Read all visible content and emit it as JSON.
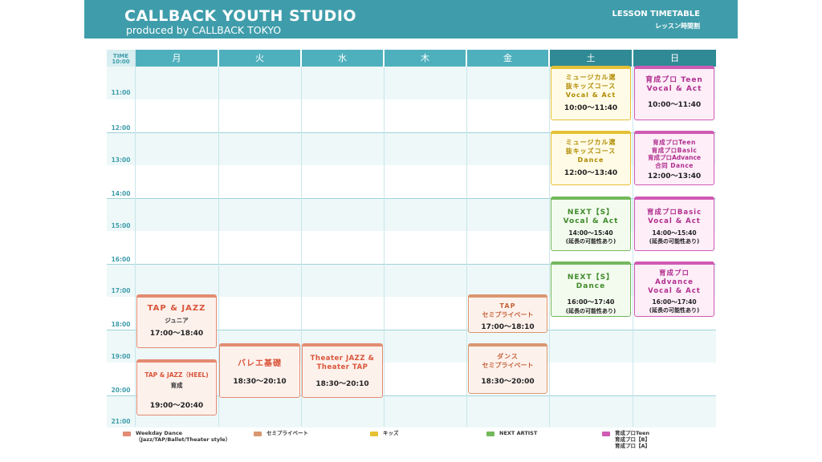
{
  "header": {
    "title": "CALLBACK YOUTH STUDIO",
    "subtitle": "produced by CALLBACK TOKYO",
    "right_title": "LESSON TIMETABLE",
    "right_sub": "レッスン時間割"
  },
  "time_header": {
    "label": "TIME",
    "start": "10:00"
  },
  "times": [
    "11:00",
    "12:00",
    "13:00",
    "14:00",
    "15:00",
    "16:00",
    "17:00",
    "18:00",
    "19:00",
    "20:00",
    "21:00"
  ],
  "days": [
    "月",
    "火",
    "水",
    "木",
    "金",
    "土",
    "日"
  ],
  "colors": {
    "header": "#3f9dab",
    "day_header": "#4fb0bd",
    "weekend_header": "#2f8a95"
  },
  "lessons": {
    "mon_tapjazz": {
      "title": "TAP & JAZZ",
      "sub": "ジュニア",
      "time": "17:00〜18:40"
    },
    "mon_heel": {
      "title": "TAP & JAZZ（HEEL)",
      "sub": "育成",
      "time": "19:00〜20:40"
    },
    "tue_ballet": {
      "title": "バレエ基礎",
      "time": "18:30〜20:10"
    },
    "wed_theater_1": {
      "title": "Theater JAZZ &",
      "title2": "Theater TAP",
      "time": "18:30〜20:10"
    },
    "fri_tap": {
      "title": "TAP",
      "title2": "セミプライベート",
      "time": "17:00〜18:10"
    },
    "fri_dance": {
      "title": "ダンス",
      "title2": "セミプライベート",
      "time": "18:30〜20:00"
    },
    "sat_kids_vocal": {
      "l1": "ミュージカル選",
      "l2": "抜キッズコース",
      "l3": "Vocal & Act",
      "time": "10:00〜11:40"
    },
    "sat_kids_dance": {
      "l1": "ミュージカル選",
      "l2": "抜キッズコース",
      "l3": "Dance",
      "time": "12:00〜13:40"
    },
    "sat_next_vocal": {
      "l1": "NEXT【S】",
      "l2": "Vocal & Act",
      "time": "14:00〜15:40",
      "note": "(延長の可能性あり)"
    },
    "sat_next_dance": {
      "l1": "NEXT【S】",
      "l2": "Dance",
      "time": "16:00〜17:40",
      "note": "(延長の可能性あり)"
    },
    "sun_teen": {
      "l1": "育成プロ Teen",
      "l2": "Vocal & Act",
      "time": "10:00〜11:40"
    },
    "sun_joint_dance": {
      "l1": "育成プロTeen",
      "l2": "育成プロBasic",
      "l3": "育成プロAdvance",
      "l4": "合同 Dance",
      "time": "12:00〜13:40"
    },
    "sun_basic": {
      "l1": "育成プロBasic",
      "l2": "Vocal & Act",
      "time": "14:00〜15:40",
      "note": "(延長の可能性あり)"
    },
    "sun_advance": {
      "l1": "育成プロ",
      "l2": "Advance",
      "l3": "Vocal & Act",
      "time": "16:00〜17:40",
      "note": "(延長の可能性あり)"
    }
  },
  "legend": {
    "weekday": {
      "l1": "Weekday Dance",
      "l2": "（Jazz/TAP/Ballet/Theater style）",
      "color": "#e38b72"
    },
    "semi": {
      "l1": "セミプライベート",
      "color": "#d99770"
    },
    "kids": {
      "l1": "キッズ",
      "color": "#e6c034"
    },
    "next": {
      "l1": "NEXT ARTIST",
      "color": "#74b85b"
    },
    "pro": {
      "l1": "育成プロTeen",
      "l2": "育成プロ【B】",
      "l3": "育成プロ【A】",
      "color": "#d05ab4"
    }
  }
}
